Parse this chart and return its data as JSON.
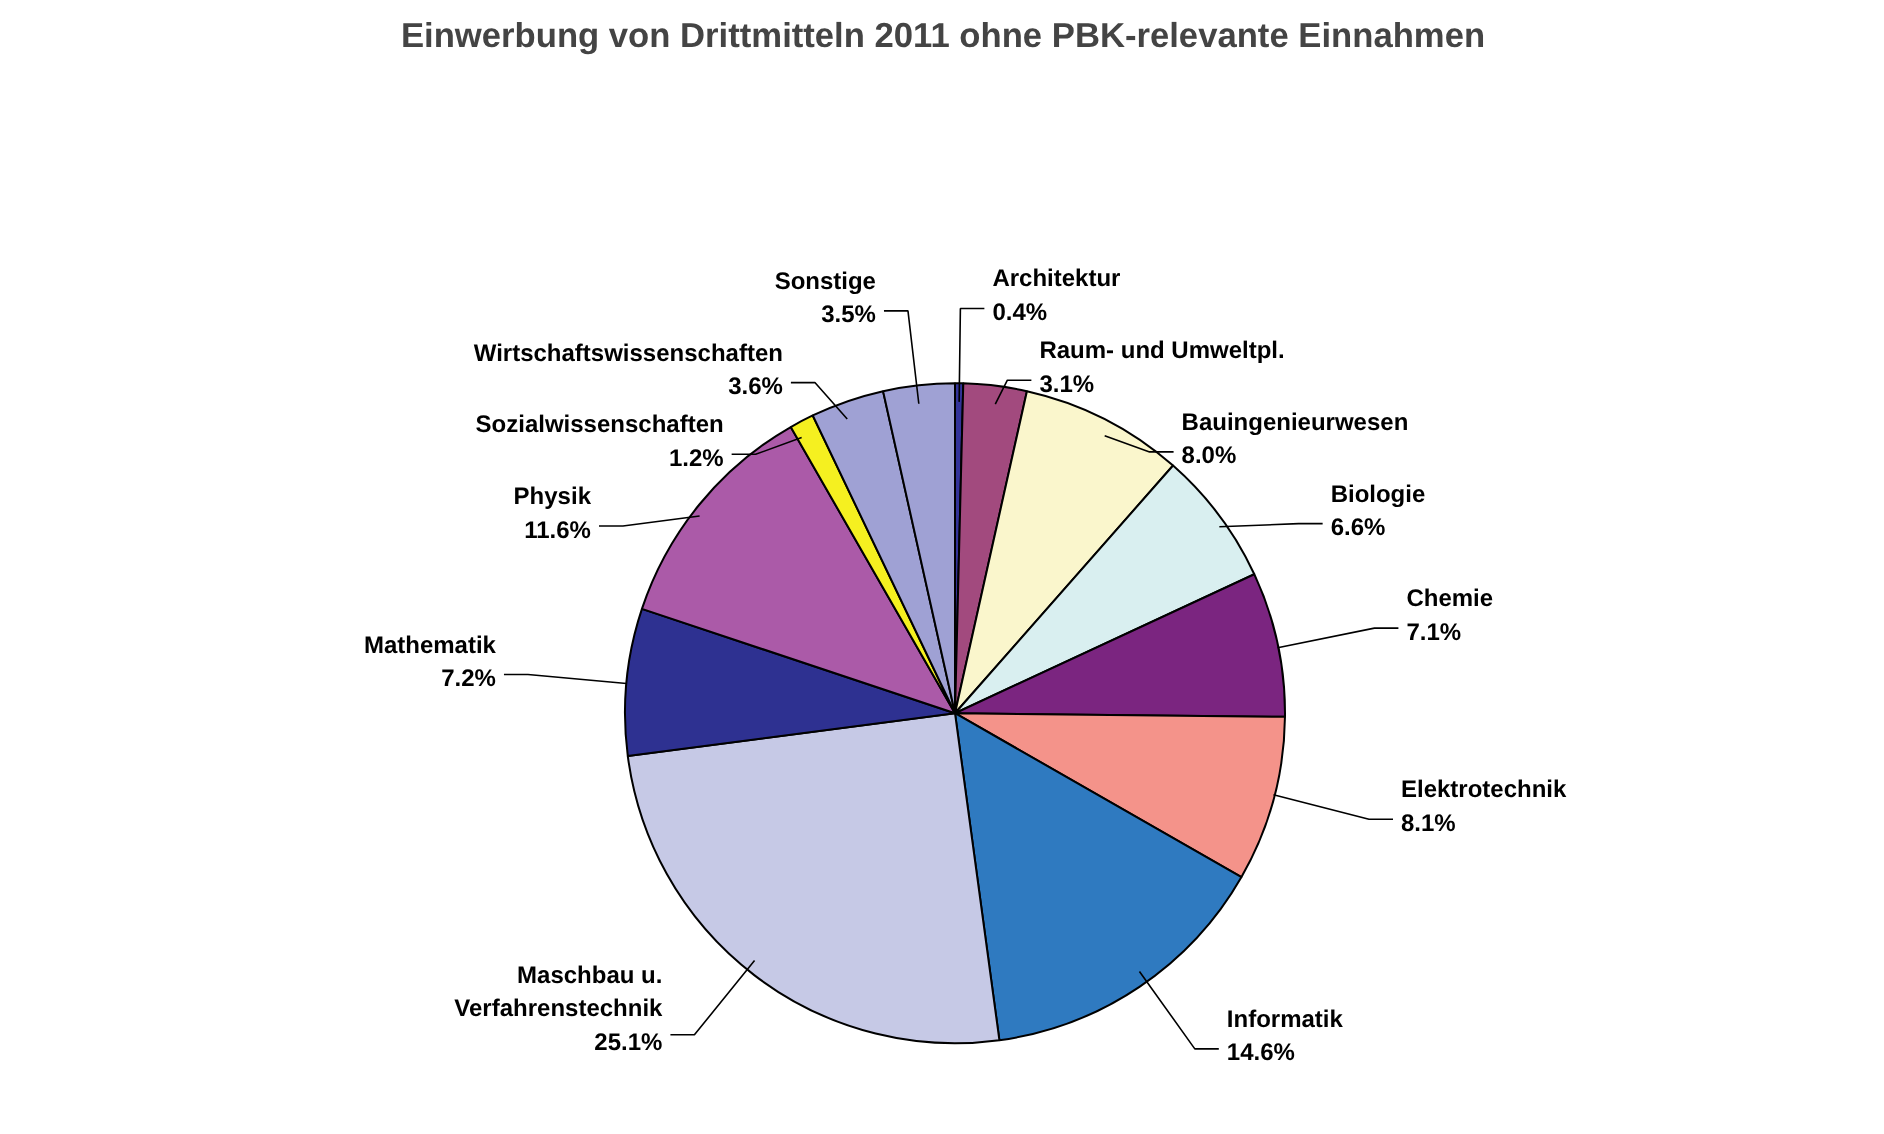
{
  "chart_data": {
    "type": "pie",
    "title": "Einwerbung von Drittmitteln 2011 ohne PBK-relevante Einnahmen",
    "categories": [
      "Architektur",
      "Raum- und Umweltpl.",
      "Bauingenieurwesen",
      "Biologie",
      "Chemie",
      "Elektrotechnik",
      "Informatik",
      "Maschbau u.\nVerfahrenstechnik",
      "Mathematik",
      "Physik",
      "Sozialwissenschaften",
      "Wirtschaftswissenschaften",
      "Sonstige"
    ],
    "values": [
      0.4,
      3.1,
      8.0,
      6.6,
      7.1,
      8.1,
      14.6,
      25.1,
      7.2,
      11.6,
      1.2,
      3.6,
      3.5
    ],
    "value_labels": [
      "0.4%",
      "3.1%",
      "8.0%",
      "6.6%",
      "7.1%",
      "8.1%",
      "14.6%",
      "25.1%",
      "7.2%",
      "11.6%",
      "1.2%",
      "3.6%",
      "3.5%"
    ],
    "colors": [
      "#333399",
      "#a24a7e",
      "#faf6cc",
      "#d9eff0",
      "#7b2580",
      "#f4938a",
      "#2f7ac0",
      "#c6c9e6",
      "#2e3191",
      "#ab5aa8",
      "#f5f020",
      "#9fa1d4",
      "#9fa1d4"
    ]
  }
}
